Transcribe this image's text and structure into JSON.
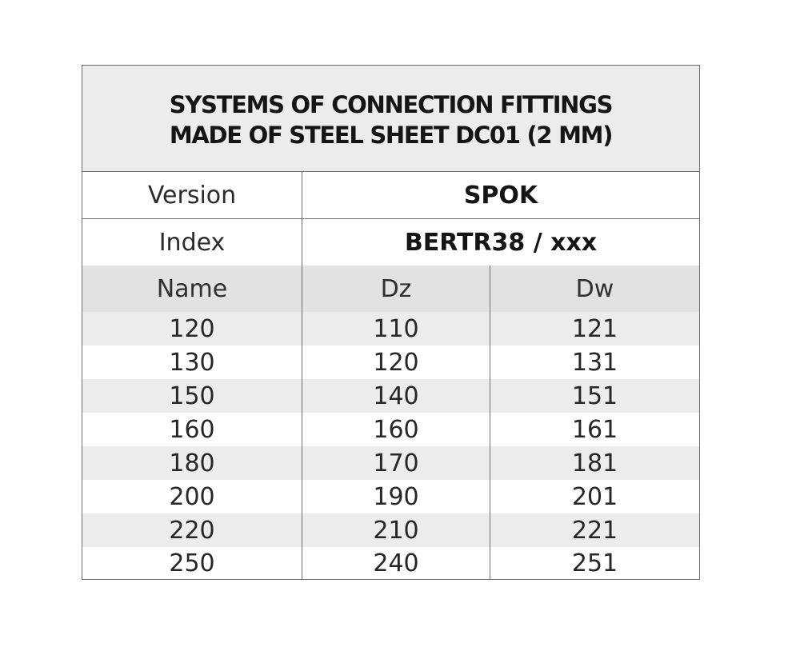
{
  "title": {
    "line1": "SYSTEMS OF CONNECTION FITTINGS",
    "line2": "MADE OF STEEL SHEET DC01 (2 MM)"
  },
  "version": {
    "label": "Version",
    "value": "SPOK"
  },
  "index": {
    "label": "Index",
    "value": "BERTR38 / xxx"
  },
  "columns": [
    "Name",
    "Dz",
    "Dw"
  ],
  "rows": [
    [
      "120",
      "110",
      "121"
    ],
    [
      "130",
      "120",
      "131"
    ],
    [
      "150",
      "140",
      "151"
    ],
    [
      "160",
      "160",
      "161"
    ],
    [
      "180",
      "170",
      "181"
    ],
    [
      "200",
      "190",
      "201"
    ],
    [
      "220",
      "210",
      "221"
    ],
    [
      "250",
      "240",
      "251"
    ]
  ]
}
